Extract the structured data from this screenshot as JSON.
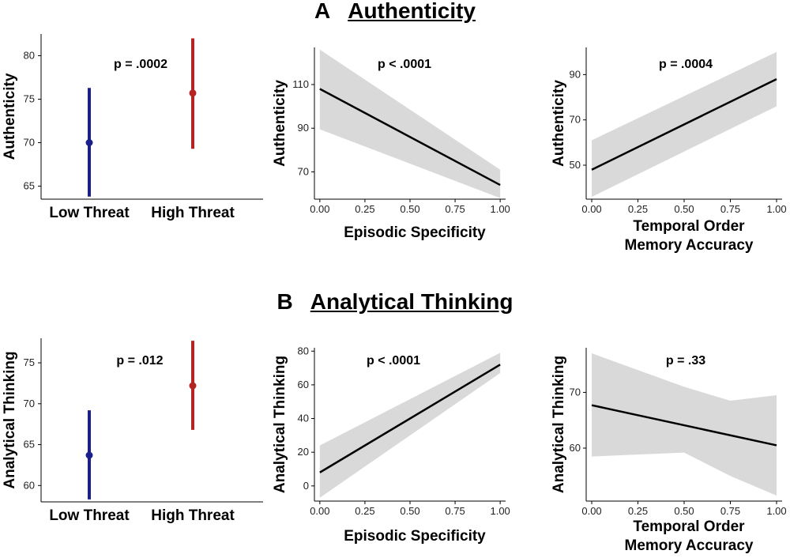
{
  "sections": [
    {
      "letter": "A",
      "title": "Authenticity"
    },
    {
      "letter": "B",
      "title": "Analytical Thinking"
    }
  ],
  "chart_data": [
    {
      "type": "point-range",
      "section": "A",
      "ylabel": "Authenticity",
      "pvalue": "p = .0002",
      "categories": [
        "Low Threat",
        "High Threat"
      ],
      "ylim": [
        63.5,
        82.5
      ],
      "yticks": [
        65,
        70,
        75,
        80
      ],
      "points": [
        {
          "category": "Low Threat",
          "mean": 70,
          "low": 63.8,
          "high": 76.3,
          "color": "#1a1f8c"
        },
        {
          "category": "High Threat",
          "mean": 75.7,
          "low": 69.3,
          "high": 82.0,
          "color": "#b52424"
        }
      ]
    },
    {
      "type": "line",
      "section": "A",
      "xlabel": [
        "Episodic Specificity"
      ],
      "ylabel": "Authenticity",
      "pvalue": "p < .0001",
      "xlim": [
        -0.03,
        1.03
      ],
      "ylim": [
        57.5,
        127
      ],
      "xticks": [
        0.0,
        0.25,
        0.5,
        0.75,
        1.0
      ],
      "xtick_labels": [
        "0.00",
        "0.25",
        "0.50",
        "0.75",
        "1.00"
      ],
      "yticks": [
        70,
        90,
        110
      ],
      "ytick_labels": [
        "70",
        "90",
        "110"
      ],
      "line": {
        "x": [
          0,
          1
        ],
        "y": [
          108,
          64
        ]
      },
      "ribbon": {
        "x": [
          0,
          1
        ],
        "upper": [
          126,
          71
        ],
        "lower": [
          89.5,
          58
        ]
      }
    },
    {
      "type": "line",
      "section": "A",
      "xlabel": [
        "Temporal Order",
        "Memory Accuracy"
      ],
      "ylabel": "Authenticity",
      "pvalue": "p = .0004",
      "xlim": [
        -0.03,
        1.03
      ],
      "ylim": [
        35,
        102
      ],
      "xticks": [
        0.0,
        0.25,
        0.5,
        0.75,
        1.0
      ],
      "xtick_labels": [
        "0.00",
        "0.25",
        "0.50",
        "0.75",
        "1.00"
      ],
      "yticks": [
        50,
        70,
        90
      ],
      "ytick_labels": [
        "50",
        "70",
        "90"
      ],
      "line": {
        "x": [
          0,
          1
        ],
        "y": [
          48,
          88
        ]
      },
      "ribbon": {
        "x": [
          0,
          1
        ],
        "upper": [
          61,
          100
        ],
        "lower": [
          36,
          76
        ]
      }
    },
    {
      "type": "point-range",
      "section": "B",
      "ylabel": "Analytical Thinking",
      "pvalue": "p = .012",
      "categories": [
        "Low Threat",
        "High Threat"
      ],
      "ylim": [
        58,
        78
      ],
      "yticks": [
        60,
        65,
        70,
        75
      ],
      "points": [
        {
          "category": "Low Threat",
          "mean": 63.7,
          "low": 58.3,
          "high": 69.2,
          "color": "#1a1f8c"
        },
        {
          "category": "High Threat",
          "mean": 72.2,
          "low": 66.8,
          "high": 77.7,
          "color": "#b52424"
        }
      ]
    },
    {
      "type": "line",
      "section": "B",
      "xlabel": [
        "Episodic Specificity"
      ],
      "ylabel": "Analytical Thinking",
      "pvalue": "p < .0001",
      "xlim": [
        -0.03,
        1.03
      ],
      "ylim": [
        -9,
        82
      ],
      "xticks": [
        0.0,
        0.25,
        0.5,
        0.75,
        1.0
      ],
      "xtick_labels": [
        "0.00",
        "0.25",
        "0.50",
        "0.75",
        "1.00"
      ],
      "yticks": [
        0,
        20,
        40,
        60,
        80
      ],
      "ytick_labels": [
        "0",
        "20",
        "40",
        "60",
        "80"
      ],
      "line": {
        "x": [
          0,
          1
        ],
        "y": [
          8,
          72
        ]
      },
      "ribbon": {
        "x": [
          0,
          1
        ],
        "upper": [
          24,
          79
        ],
        "lower": [
          -7,
          67
        ]
      }
    },
    {
      "type": "line",
      "section": "B",
      "xlabel": [
        "Temporal Order",
        "Memory Accuracy"
      ],
      "ylabel": "Analytical Thinking",
      "pvalue": "p = .33",
      "xlim": [
        -0.03,
        1.03
      ],
      "ylim": [
        50.5,
        78
      ],
      "xticks": [
        0.0,
        0.25,
        0.5,
        0.75,
        1.0
      ],
      "xtick_labels": [
        "0.00",
        "0.25",
        "0.50",
        "0.75",
        "1.00"
      ],
      "yticks": [
        60,
        70
      ],
      "ytick_labels": [
        "60",
        "70"
      ],
      "line": {
        "x": [
          0,
          1
        ],
        "y": [
          67.7,
          60.5
        ]
      },
      "ribbon": {
        "x": [
          0,
          0.5,
          0.75,
          1
        ],
        "upper": [
          77,
          71,
          68.5,
          69.5
        ],
        "lower": [
          58.5,
          59.2,
          55,
          51.5
        ]
      }
    }
  ]
}
